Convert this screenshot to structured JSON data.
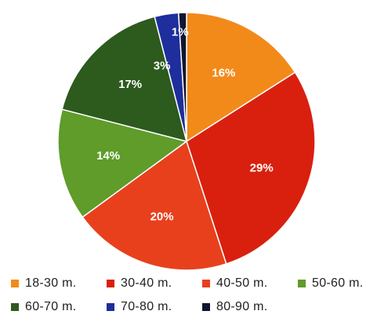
{
  "chart_data": {
    "type": "pie",
    "title": "",
    "start_angle_deg": 0,
    "direction": "clockwise",
    "legend_position": "bottom",
    "slices": [
      {
        "label": "18-30 m.",
        "value": 16,
        "value_label": "16%",
        "color": "#F28A1A"
      },
      {
        "label": "30-40 m.",
        "value": 29,
        "value_label": "29%",
        "color": "#D9200F"
      },
      {
        "label": "40-50 m.",
        "value": 20,
        "value_label": "20%",
        "color": "#E8401C"
      },
      {
        "label": "50-60 m.",
        "value": 14,
        "value_label": "14%",
        "color": "#5F9C2A"
      },
      {
        "label": "60-70 m.",
        "value": 17,
        "value_label": "17%",
        "color": "#2D5A1D"
      },
      {
        "label": "70-80 m.",
        "value": 3,
        "value_label": "3%",
        "color": "#1E2E9C"
      },
      {
        "label": "80-90 m.",
        "value": 1,
        "value_label": "1%",
        "color": "#101530"
      }
    ]
  }
}
